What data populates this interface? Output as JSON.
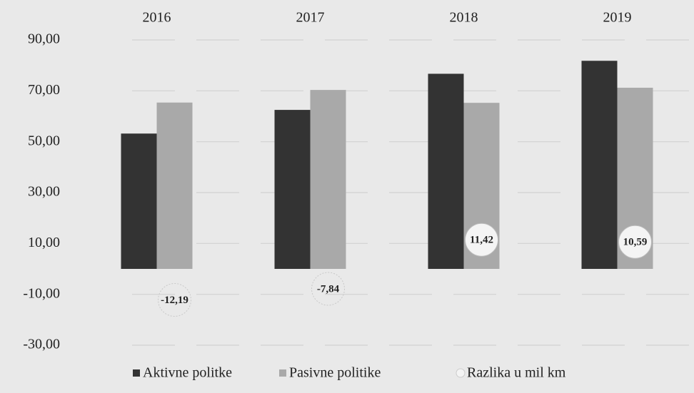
{
  "chart_data": {
    "type": "bar",
    "categories": [
      "2016",
      "2017",
      "2018",
      "2019"
    ],
    "series": [
      {
        "name": "Aktivne politke",
        "color": "#333333",
        "values": [
          53.2,
          62.5,
          76.7,
          81.8
        ]
      },
      {
        "name": "Pasivne politike",
        "color": "#a9a9a9",
        "values": [
          65.39,
          70.34,
          65.28,
          71.21
        ]
      },
      {
        "name": "Razlika u mil km",
        "color": "#f4f4f4",
        "type": "scatter",
        "values": [
          -12.19,
          -7.84,
          11.42,
          10.59
        ],
        "value_labels": [
          "-12,19",
          "-7,84",
          "11,42",
          "10,59"
        ]
      }
    ],
    "ylim": [
      -30,
      90
    ],
    "yticks": [
      {
        "value": -30,
        "label": "-30,00"
      },
      {
        "value": -10,
        "label": "-10,00"
      },
      {
        "value": 10,
        "label": "10,00"
      },
      {
        "value": 30,
        "label": "30,00"
      },
      {
        "value": 50,
        "label": "50,00"
      },
      {
        "value": 70,
        "label": "70,00"
      },
      {
        "value": 90,
        "label": "90,00"
      }
    ],
    "grid": true,
    "legend": "bottom"
  }
}
